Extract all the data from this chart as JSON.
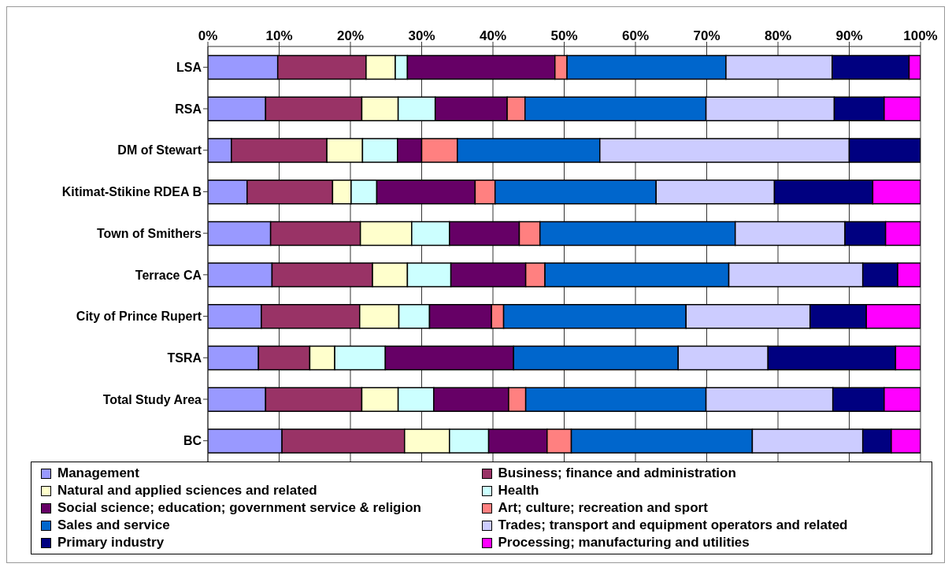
{
  "chart_data": {
    "type": "bar",
    "orientation": "horizontal",
    "stacked": true,
    "categories": [
      "LSA",
      "RSA",
      "DM of Stewart",
      "Kitimat-Stikine RDEA B",
      "Town of Smithers",
      "Terrace CA",
      "City of Prince Rupert",
      "TSRA",
      "Total Study Area",
      "BC"
    ],
    "xlim": [
      0,
      100
    ],
    "xticks": [
      {
        "value": 0,
        "label": "0%"
      },
      {
        "value": 10,
        "label": "10%"
      },
      {
        "value": 20,
        "label": "20%"
      },
      {
        "value": 30,
        "label": "30%"
      },
      {
        "value": 40,
        "label": "40%"
      },
      {
        "value": 50,
        "label": "50%"
      },
      {
        "value": 60,
        "label": "60%"
      },
      {
        "value": 70,
        "label": "70%"
      },
      {
        "value": 80,
        "label": "80%"
      },
      {
        "value": 90,
        "label": "90%"
      },
      {
        "value": 100,
        "label": "100%"
      }
    ],
    "grid": "x",
    "legend": "bottom",
    "series": [
      {
        "name": "Management",
        "color": "#9999ff",
        "values": [
          9.8,
          8.1,
          3.3,
          5.5,
          8.8,
          9.0,
          7.5,
          7.1,
          8.1,
          10.4
        ]
      },
      {
        "name": "Business; finance and administration",
        "color": "#993366",
        "values": [
          12.4,
          13.5,
          13.4,
          12.0,
          12.6,
          14.1,
          13.8,
          7.2,
          13.5,
          17.2
        ]
      },
      {
        "name": "Natural and applied sciences and related",
        "color": "#ffffcc",
        "values": [
          4.1,
          5.1,
          5.0,
          2.6,
          7.2,
          4.9,
          5.5,
          3.5,
          5.1,
          6.3
        ]
      },
      {
        "name": "Health",
        "color": "#ccffff",
        "values": [
          1.7,
          5.2,
          4.9,
          3.6,
          5.3,
          6.1,
          4.3,
          7.1,
          5.0,
          5.5
        ]
      },
      {
        "name": "Social science; education; government service & religion",
        "color": "#660066",
        "values": [
          20.7,
          10.1,
          3.4,
          13.8,
          9.8,
          10.5,
          8.7,
          18.0,
          10.5,
          8.2
        ]
      },
      {
        "name": "Art; culture; recreation and sport",
        "color": "#ff8080",
        "values": [
          1.7,
          2.5,
          5.0,
          2.8,
          2.9,
          2.7,
          1.7,
          0,
          2.4,
          3.4
        ]
      },
      {
        "name": "Sales and service",
        "color": "#0066cc",
        "values": [
          22.3,
          25.4,
          20.0,
          22.6,
          27.4,
          25.8,
          25.6,
          23.1,
          25.3,
          25.4
        ]
      },
      {
        "name": "Trades; transport and equipment operators and related",
        "color": "#ccccff",
        "values": [
          14.9,
          18.0,
          35.0,
          16.6,
          15.4,
          18.8,
          17.4,
          12.6,
          17.8,
          15.5
        ]
      },
      {
        "name": "Primary industry",
        "color": "#000080",
        "values": [
          10.8,
          7.0,
          10.0,
          13.8,
          5.7,
          4.9,
          7.9,
          17.9,
          7.2,
          4.0
        ]
      },
      {
        "name": "Processing; manufacturing and utilities",
        "color": "#ff00ff",
        "values": [
          1.6,
          5.1,
          0,
          6.7,
          4.9,
          3.2,
          7.6,
          3.5,
          5.1,
          4.1
        ]
      }
    ]
  }
}
